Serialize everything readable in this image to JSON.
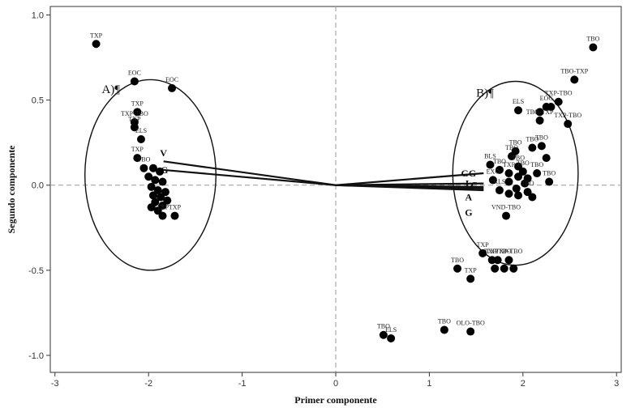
{
  "chart_data": {
    "type": "scatter",
    "xlabel": "Primer componente",
    "ylabel": "Segundo componente",
    "xlim": [
      -3.05,
      3.05
    ],
    "ylim": [
      -1.1,
      1.05
    ],
    "xticks": [
      -3,
      -2,
      -1,
      0,
      1,
      2,
      3
    ],
    "xtick_labels": [
      "-3",
      "-2",
      "-1",
      "0",
      "1",
      "2",
      "3"
    ],
    "yticks": [
      -1.0,
      -0.5,
      0.0,
      0.5,
      1.0
    ],
    "ytick_labels": [
      "-1.0",
      "-0.5",
      "0.0",
      "0.5",
      "1.0"
    ],
    "reference_lines": {
      "x": 0,
      "y": 0,
      "style": "dashed"
    },
    "grid": false,
    "group_labels": [
      {
        "text": "A)¶",
        "x": -2.5,
        "y": 0.54
      },
      {
        "text": "B)¶",
        "x": 1.5,
        "y": 0.52
      }
    ],
    "group_ellipses": [
      {
        "cx": -1.98,
        "cy": 0.06,
        "rx": 0.7,
        "ry": 0.56
      },
      {
        "cx": 1.92,
        "cy": 0.07,
        "rx": 0.67,
        "ry": 0.54
      }
    ],
    "vectors": [
      {
        "label": "V",
        "x": -1.84,
        "y": 0.14,
        "label_x": -1.84,
        "label_y": 0.19
      },
      {
        "label": "G",
        "x": -1.85,
        "y": 0.09,
        "label_x": -1.83,
        "label_y": 0.09
      },
      {
        "label": "GG",
        "x": 1.58,
        "y": 0.07,
        "label_x": 1.42,
        "label_y": 0.07
      },
      {
        "label": "L",
        "x": 1.58,
        "y": 0.01,
        "label_x": 1.42,
        "label_y": 0.01
      },
      {
        "label": "C",
        "x": 1.58,
        "y": -0.01,
        "label_x": 1.48,
        "label_y": 0.0
      },
      {
        "label": "A",
        "x": 1.58,
        "y": -0.02,
        "label_x": 1.42,
        "label_y": -0.07
      },
      {
        "label": "G",
        "x": 1.58,
        "y": -0.03,
        "label_x": 1.42,
        "label_y": -0.16
      }
    ],
    "points": [
      {
        "x": -2.56,
        "y": 0.83,
        "label": "TXP"
      },
      {
        "x": -2.15,
        "y": 0.61,
        "label": "EOC"
      },
      {
        "x": -1.75,
        "y": 0.57,
        "label": "EOC"
      },
      {
        "x": -2.12,
        "y": 0.43,
        "label": "TXP"
      },
      {
        "x": -2.15,
        "y": 0.37,
        "label": "TXP-TBO"
      },
      {
        "x": -2.15,
        "y": 0.34,
        "label": "TXP"
      },
      {
        "x": -2.08,
        "y": 0.27,
        "label": "ELS"
      },
      {
        "x": -2.12,
        "y": 0.16,
        "label": "TXP"
      },
      {
        "x": -2.05,
        "y": 0.1,
        "label": "TBO"
      },
      {
        "x": -1.95,
        "y": 0.1,
        "label": ""
      },
      {
        "x": -1.88,
        "y": 0.08,
        "label": ""
      },
      {
        "x": -2.0,
        "y": 0.05,
        "label": ""
      },
      {
        "x": -1.93,
        "y": 0.03,
        "label": ""
      },
      {
        "x": -1.85,
        "y": 0.02,
        "label": ""
      },
      {
        "x": -1.97,
        "y": -0.01,
        "label": ""
      },
      {
        "x": -1.9,
        "y": -0.03,
        "label": ""
      },
      {
        "x": -1.82,
        "y": -0.04,
        "label": ""
      },
      {
        "x": -1.95,
        "y": -0.06,
        "label": ""
      },
      {
        "x": -1.87,
        "y": -0.07,
        "label": ""
      },
      {
        "x": -1.8,
        "y": -0.09,
        "label": ""
      },
      {
        "x": -1.93,
        "y": -0.1,
        "label": ""
      },
      {
        "x": -1.85,
        "y": -0.12,
        "label": ""
      },
      {
        "x": -1.97,
        "y": -0.13,
        "label": ""
      },
      {
        "x": -1.9,
        "y": -0.15,
        "label": ""
      },
      {
        "x": -1.85,
        "y": -0.18,
        "label": "TXP"
      },
      {
        "x": -1.72,
        "y": -0.18,
        "label": "TXP"
      },
      {
        "x": 2.75,
        "y": 0.81,
        "label": "TBO"
      },
      {
        "x": 2.55,
        "y": 0.62,
        "label": "TBO-TXP"
      },
      {
        "x": 2.38,
        "y": 0.49,
        "label": "TXP-TBO"
      },
      {
        "x": 2.3,
        "y": 0.46,
        "label": ""
      },
      {
        "x": 2.25,
        "y": 0.46,
        "label": "EOC"
      },
      {
        "x": 2.18,
        "y": 0.43,
        "label": ""
      },
      {
        "x": 2.48,
        "y": 0.36,
        "label": "TXP-TBO"
      },
      {
        "x": 1.95,
        "y": 0.44,
        "label": "ELS"
      },
      {
        "x": 2.18,
        "y": 0.38,
        "label": "TBO-TXP"
      },
      {
        "x": 2.1,
        "y": 0.22,
        "label": "TBO"
      },
      {
        "x": 2.2,
        "y": 0.23,
        "label": "TBO"
      },
      {
        "x": 1.92,
        "y": 0.2,
        "label": "TBO"
      },
      {
        "x": 1.88,
        "y": 0.17,
        "label": "TBO"
      },
      {
        "x": 2.25,
        "y": 0.16,
        "label": ""
      },
      {
        "x": 1.65,
        "y": 0.12,
        "label": "BLS"
      },
      {
        "x": 1.95,
        "y": 0.11,
        "label": "TBO"
      },
      {
        "x": 1.75,
        "y": 0.09,
        "label": "TBO"
      },
      {
        "x": 2.0,
        "y": 0.08,
        "label": "TBO"
      },
      {
        "x": 1.85,
        "y": 0.07,
        "label": "TXP"
      },
      {
        "x": 2.15,
        "y": 0.07,
        "label": "TBO"
      },
      {
        "x": 1.95,
        "y": 0.05,
        "label": ""
      },
      {
        "x": 2.05,
        "y": 0.04,
        "label": ""
      },
      {
        "x": 1.68,
        "y": 0.03,
        "label": "EXO"
      },
      {
        "x": 1.85,
        "y": 0.02,
        "label": ""
      },
      {
        "x": 2.02,
        "y": 0.01,
        "label": ""
      },
      {
        "x": 2.28,
        "y": 0.02,
        "label": "TBO"
      },
      {
        "x": 1.93,
        "y": -0.02,
        "label": ""
      },
      {
        "x": 1.75,
        "y": -0.03,
        "label": "RLS"
      },
      {
        "x": 2.05,
        "y": -0.04,
        "label": "TBO"
      },
      {
        "x": 1.85,
        "y": -0.05,
        "label": ""
      },
      {
        "x": 1.95,
        "y": -0.06,
        "label": ""
      },
      {
        "x": 2.1,
        "y": -0.07,
        "label": ""
      },
      {
        "x": 1.82,
        "y": -0.18,
        "label": "VND-TBO"
      },
      {
        "x": 1.57,
        "y": -0.4,
        "label": "TXP"
      },
      {
        "x": 1.67,
        "y": -0.44,
        "label": "TXP"
      },
      {
        "x": 1.73,
        "y": -0.44,
        "label": "TXP-TBO"
      },
      {
        "x": 1.85,
        "y": -0.44,
        "label": "TXP-TBO"
      },
      {
        "x": 1.7,
        "y": -0.49,
        "label": ""
      },
      {
        "x": 1.8,
        "y": -0.49,
        "label": ""
      },
      {
        "x": 1.9,
        "y": -0.49,
        "label": ""
      },
      {
        "x": 1.3,
        "y": -0.49,
        "label": "TBO"
      },
      {
        "x": 1.44,
        "y": -0.55,
        "label": "TXP"
      },
      {
        "x": 0.51,
        "y": -0.88,
        "label": "TBO"
      },
      {
        "x": 0.59,
        "y": -0.9,
        "label": "ELS"
      },
      {
        "x": 1.16,
        "y": -0.85,
        "label": "TBO"
      },
      {
        "x": 1.44,
        "y": -0.86,
        "label": "OLO-TBO"
      }
    ]
  }
}
